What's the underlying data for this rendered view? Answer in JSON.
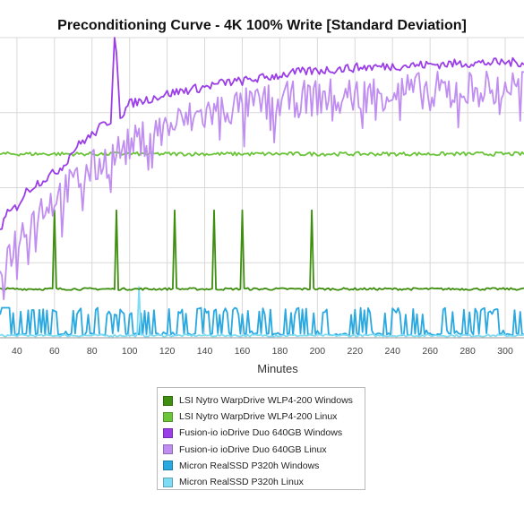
{
  "chart_data": {
    "type": "line",
    "title": "Preconditioning Curve - 4K 100% Write [Standard Deviation]",
    "xlabel": "Minutes",
    "ylabel": "",
    "xlim": [
      31,
      310
    ],
    "ylim": [
      0,
      400
    ],
    "x_ticks": [
      40,
      60,
      80,
      100,
      120,
      140,
      160,
      180,
      200,
      220,
      240,
      260,
      280,
      300
    ],
    "grid": true,
    "legend_position": "bottom-center",
    "series": [
      {
        "name": "LSI Nytro WarpDrive WLP4-200 Windows",
        "color": "#3e8e0f",
        "base": 65,
        "noise": 1.5,
        "spikes": [
          [
            60,
            170
          ],
          [
            93,
            170
          ],
          [
            124,
            170
          ],
          [
            145,
            170
          ],
          [
            160,
            170
          ],
          [
            197,
            170
          ]
        ]
      },
      {
        "name": "LSI Nytro WarpDrive WLP4-200 Linux",
        "color": "#6cc43a",
        "base": 245,
        "noise": 2.5
      },
      {
        "name": "Fusion-io ioDrive Duo 640GB Windows",
        "color": "#9b3ee8",
        "points": [
          [
            31,
            145
          ],
          [
            35,
            165
          ],
          [
            40,
            175
          ],
          [
            45,
            195
          ],
          [
            50,
            205
          ],
          [
            55,
            212
          ],
          [
            60,
            220
          ],
          [
            65,
            230
          ],
          [
            70,
            250
          ],
          [
            75,
            262
          ],
          [
            80,
            270
          ],
          [
            85,
            282
          ],
          [
            90,
            290
          ],
          [
            92,
            400
          ],
          [
            93,
            380
          ],
          [
            95,
            295
          ],
          [
            100,
            312
          ],
          [
            110,
            318
          ],
          [
            120,
            325
          ],
          [
            130,
            330
          ],
          [
            140,
            334
          ],
          [
            150,
            340
          ],
          [
            160,
            342
          ],
          [
            170,
            346
          ],
          [
            180,
            350
          ],
          [
            190,
            354
          ],
          [
            200,
            356
          ],
          [
            220,
            360
          ],
          [
            240,
            362
          ],
          [
            260,
            364
          ],
          [
            280,
            366
          ],
          [
            300,
            367
          ],
          [
            310,
            367
          ]
        ]
      },
      {
        "name": "Fusion-io ioDrive Duo 640GB Linux",
        "color": "#c08ef0",
        "points": [
          [
            31,
            90
          ],
          [
            35,
            110
          ],
          [
            40,
            130
          ],
          [
            45,
            150
          ],
          [
            50,
            165
          ],
          [
            55,
            178
          ],
          [
            60,
            185
          ],
          [
            70,
            205
          ],
          [
            80,
            225
          ],
          [
            90,
            240
          ],
          [
            95,
            250
          ],
          [
            100,
            255
          ],
          [
            110,
            270
          ],
          [
            120,
            280
          ],
          [
            130,
            290
          ],
          [
            140,
            298
          ],
          [
            150,
            305
          ],
          [
            160,
            308
          ],
          [
            170,
            312
          ],
          [
            180,
            316
          ],
          [
            190,
            318
          ],
          [
            200,
            320
          ],
          [
            220,
            324
          ],
          [
            240,
            328
          ],
          [
            260,
            330
          ],
          [
            280,
            332
          ],
          [
            300,
            334
          ],
          [
            310,
            335
          ]
        ]
      },
      {
        "name": "Micron RealSSD P320h Windows",
        "color": "#2aa8e0",
        "base": 3,
        "high": 40,
        "noise": 2
      },
      {
        "name": "Micron RealSSD P320h Linux",
        "color": "#7fdcf5",
        "base": 3,
        "noise": 1.5,
        "spikes": [
          [
            105,
            68
          ]
        ]
      }
    ]
  }
}
